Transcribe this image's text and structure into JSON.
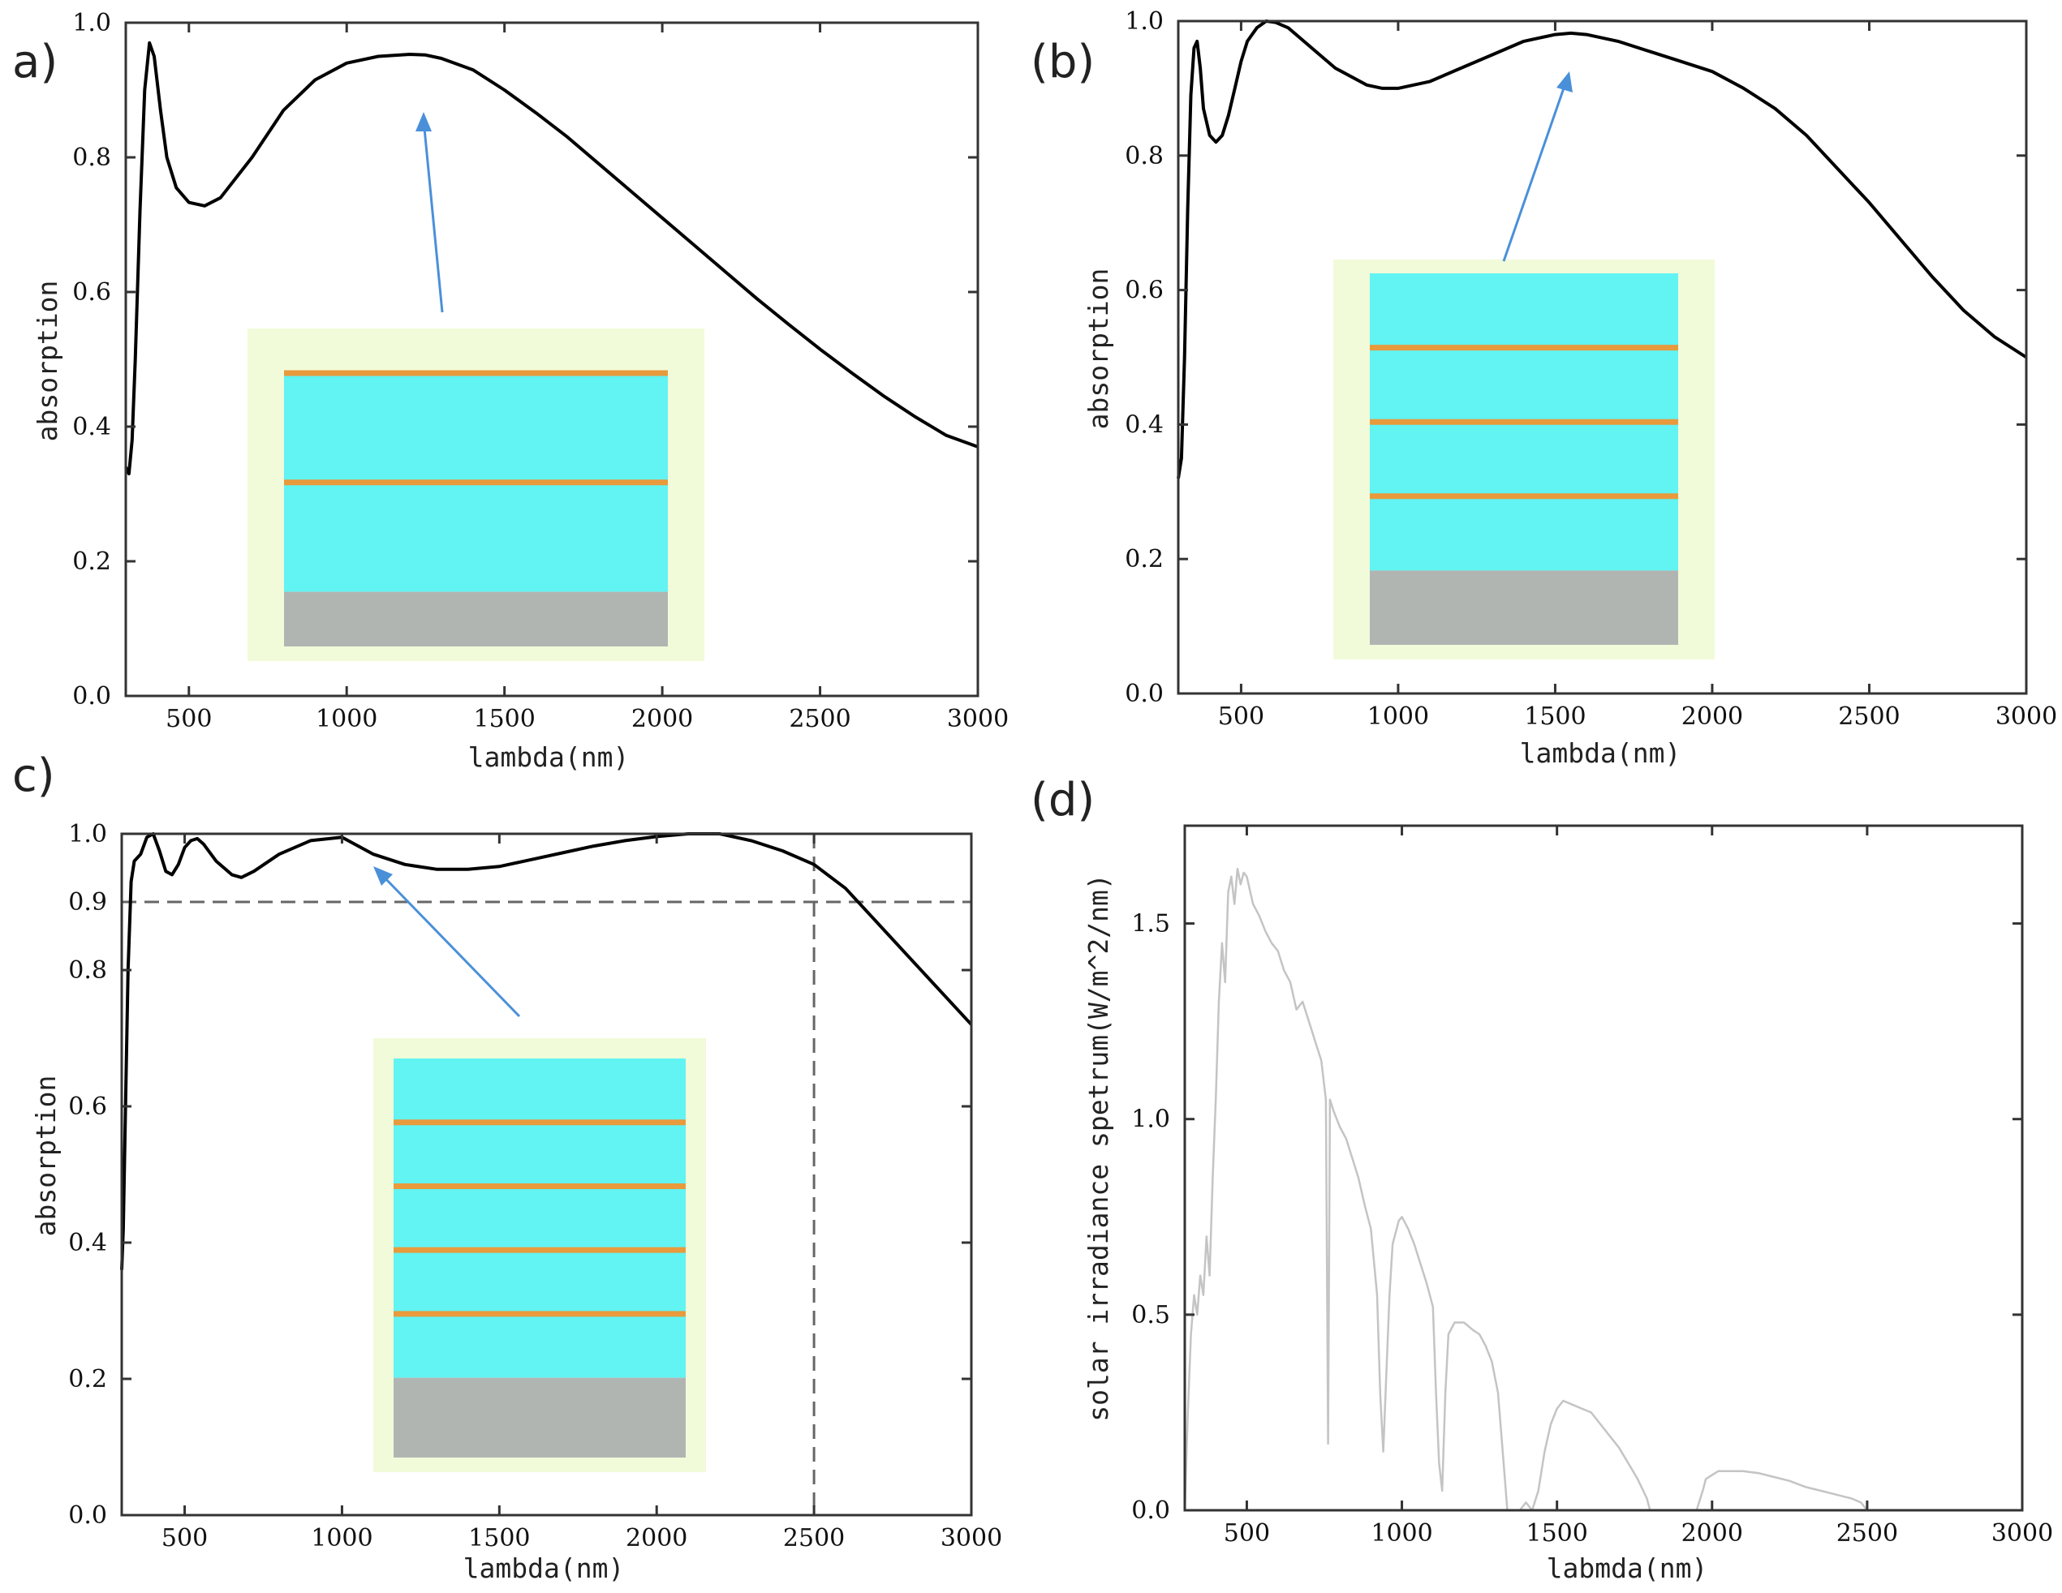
{
  "chart_data": [
    {
      "panel": "a)",
      "type": "line",
      "xlabel": "lambda(nm)",
      "ylabel": "absorption",
      "xlim": [
        300,
        3000
      ],
      "ylim": [
        0.0,
        1.0
      ],
      "xticks": [
        "500",
        "1000",
        "1500",
        "2000",
        "2500",
        "3000"
      ],
      "yticks": [
        "0.0",
        "0.2",
        "0.4",
        "0.6",
        "0.8",
        "1.0"
      ],
      "series": [
        {
          "name": "absorption",
          "color": "#000000",
          "x": [
            300,
            310,
            320,
            330,
            345,
            360,
            375,
            390,
            410,
            430,
            460,
            500,
            550,
            600,
            700,
            800,
            900,
            1000,
            1100,
            1200,
            1250,
            1300,
            1400,
            1500,
            1600,
            1700,
            1800,
            1900,
            2000,
            2100,
            2200,
            2300,
            2400,
            2500,
            2600,
            2700,
            2800,
            2900,
            3000
          ],
          "y": [
            0.34,
            0.33,
            0.38,
            0.5,
            0.72,
            0.9,
            0.97,
            0.95,
            0.87,
            0.8,
            0.755,
            0.733,
            0.728,
            0.74,
            0.8,
            0.87,
            0.915,
            0.94,
            0.95,
            0.953,
            0.952,
            0.947,
            0.93,
            0.9,
            0.866,
            0.83,
            0.79,
            0.75,
            0.71,
            0.67,
            0.63,
            0.59,
            0.552,
            0.515,
            0.48,
            0.446,
            0.415,
            0.387,
            0.37
          ]
        }
      ],
      "inset": {
        "stripes": 2,
        "bg": "#f1fbd9",
        "dielectric": "#62f3f3",
        "metal": "#e89a3c",
        "substrate": "#b1b5b2"
      }
    },
    {
      "panel": "(b)",
      "type": "line",
      "xlabel": "lambda(nm)",
      "ylabel": "absorption",
      "xlim": [
        300,
        3000
      ],
      "ylim": [
        0.0,
        1.0
      ],
      "xticks": [
        "500",
        "1000",
        "1500",
        "2000",
        "2500",
        "3000"
      ],
      "yticks": [
        "0.0",
        "0.2",
        "0.4",
        "0.6",
        "0.8",
        "1.0"
      ],
      "series": [
        {
          "name": "absorption",
          "color": "#000000",
          "x": [
            300,
            310,
            320,
            330,
            340,
            350,
            360,
            370,
            380,
            400,
            420,
            440,
            460,
            480,
            500,
            520,
            550,
            580,
            610,
            650,
            700,
            800,
            900,
            950,
            1000,
            1100,
            1200,
            1300,
            1400,
            1500,
            1550,
            1600,
            1700,
            1800,
            1900,
            2000,
            2100,
            2200,
            2300,
            2400,
            2500,
            2600,
            2700,
            2800,
            2900,
            3000
          ],
          "y": [
            0.32,
            0.35,
            0.5,
            0.72,
            0.89,
            0.96,
            0.97,
            0.93,
            0.87,
            0.83,
            0.82,
            0.83,
            0.86,
            0.9,
            0.94,
            0.97,
            0.99,
            1.0,
            0.998,
            0.99,
            0.97,
            0.93,
            0.905,
            0.9,
            0.9,
            0.91,
            0.93,
            0.95,
            0.97,
            0.98,
            0.982,
            0.98,
            0.97,
            0.955,
            0.94,
            0.925,
            0.9,
            0.87,
            0.83,
            0.78,
            0.73,
            0.675,
            0.62,
            0.57,
            0.53,
            0.5
          ]
        }
      ],
      "inset": {
        "stripes": 3,
        "bg": "#f1fbd9",
        "dielectric": "#62f3f3",
        "metal": "#e89a3c",
        "substrate": "#b1b5b2"
      }
    },
    {
      "panel": "c)",
      "type": "line",
      "xlabel": "lambda(nm)",
      "ylabel": "absorption",
      "xlim": [
        300,
        3000
      ],
      "ylim": [
        0.0,
        1.0
      ],
      "xticks": [
        "500",
        "1000",
        "1500",
        "2000",
        "2500",
        "3000"
      ],
      "yticks": [
        "0.0",
        "0.2",
        "0.4",
        "0.6",
        "0.8",
        "1.0"
      ],
      "highlighted_ytick": "0.9",
      "reference_lines": {
        "y": 0.9,
        "x": 2500,
        "color": "#e03030"
      },
      "series": [
        {
          "name": "absorption",
          "color": "#000000",
          "x": [
            300,
            305,
            310,
            320,
            330,
            340,
            350,
            360,
            380,
            400,
            420,
            440,
            460,
            480,
            500,
            520,
            540,
            560,
            600,
            650,
            680,
            720,
            800,
            900,
            1000,
            1100,
            1200,
            1300,
            1400,
            1500,
            1600,
            1700,
            1800,
            1900,
            2000,
            2100,
            2200,
            2300,
            2400,
            2500,
            2600,
            2700,
            2800,
            2900,
            3000
          ],
          "y": [
            0.36,
            0.42,
            0.55,
            0.8,
            0.93,
            0.96,
            0.965,
            0.97,
            0.995,
            1.0,
            0.975,
            0.945,
            0.94,
            0.955,
            0.98,
            0.99,
            0.993,
            0.985,
            0.96,
            0.94,
            0.936,
            0.945,
            0.97,
            0.99,
            0.995,
            0.97,
            0.955,
            0.948,
            0.948,
            0.952,
            0.962,
            0.972,
            0.982,
            0.99,
            0.996,
            1.0,
            1.0,
            0.99,
            0.975,
            0.955,
            0.92,
            0.87,
            0.82,
            0.77,
            0.72
          ]
        }
      ],
      "inset": {
        "stripes": 4,
        "bg": "#f1fbd9",
        "dielectric": "#62f3f3",
        "metal": "#e89a3c",
        "substrate": "#b1b5b2"
      }
    },
    {
      "panel": "(d)",
      "type": "line",
      "xlabel": "labmda(nm)",
      "ylabel": "solar irradiance spetrum(W/m^2/nm)",
      "xlim": [
        300,
        3000
      ],
      "ylim": [
        0.0,
        1.75
      ],
      "xticks": [
        "500",
        "1000",
        "1500",
        "2000",
        "2500",
        "3000"
      ],
      "yticks": [
        "0.0",
        "0.5",
        "1.0",
        "1.5"
      ],
      "series": [
        {
          "name": "solar irradiance",
          "color": "#c4c4c4",
          "x": [
            300,
            310,
            320,
            330,
            340,
            350,
            360,
            370,
            380,
            390,
            400,
            410,
            420,
            430,
            440,
            450,
            460,
            470,
            480,
            490,
            500,
            520,
            540,
            560,
            580,
            600,
            620,
            640,
            660,
            680,
            700,
            720,
            740,
            755,
            762,
            768,
            780,
            800,
            820,
            840,
            860,
            880,
            900,
            920,
            930,
            940,
            950,
            960,
            970,
            990,
            1000,
            1020,
            1040,
            1060,
            1080,
            1100,
            1110,
            1120,
            1130,
            1140,
            1150,
            1170,
            1200,
            1230,
            1250,
            1270,
            1290,
            1310,
            1330,
            1340,
            1350,
            1360,
            1380,
            1400,
            1420,
            1440,
            1460,
            1480,
            1500,
            1520,
            1550,
            1580,
            1610,
            1640,
            1670,
            1700,
            1730,
            1760,
            1790,
            1800,
            1810,
            1850,
            1900,
            1950,
            1970,
            1980,
            2000,
            2020,
            2050,
            2080,
            2100,
            2150,
            2200,
            2250,
            2300,
            2350,
            2400,
            2450,
            2480,
            2490,
            2500,
            2600,
            2700,
            2800,
            2900,
            3000
          ],
          "y": [
            0.0,
            0.25,
            0.45,
            0.55,
            0.5,
            0.6,
            0.55,
            0.7,
            0.6,
            0.85,
            1.05,
            1.3,
            1.45,
            1.35,
            1.58,
            1.62,
            1.55,
            1.64,
            1.6,
            1.63,
            1.62,
            1.55,
            1.52,
            1.48,
            1.45,
            1.43,
            1.38,
            1.35,
            1.28,
            1.3,
            1.25,
            1.2,
            1.15,
            1.05,
            0.17,
            1.05,
            1.02,
            0.98,
            0.95,
            0.9,
            0.85,
            0.78,
            0.72,
            0.55,
            0.3,
            0.15,
            0.35,
            0.55,
            0.68,
            0.74,
            0.75,
            0.72,
            0.68,
            0.63,
            0.58,
            0.52,
            0.3,
            0.12,
            0.05,
            0.3,
            0.45,
            0.48,
            0.48,
            0.46,
            0.45,
            0.42,
            0.38,
            0.3,
            0.1,
            0.0,
            0.0,
            0.0,
            0.0,
            0.02,
            0.0,
            0.05,
            0.15,
            0.22,
            0.26,
            0.28,
            0.27,
            0.26,
            0.25,
            0.22,
            0.19,
            0.16,
            0.12,
            0.08,
            0.03,
            0.0,
            0.0,
            0.0,
            0.0,
            0.0,
            0.05,
            0.08,
            0.09,
            0.1,
            0.1,
            0.1,
            0.1,
            0.095,
            0.085,
            0.075,
            0.06,
            0.05,
            0.04,
            0.03,
            0.02,
            0.01,
            0.0,
            0.0,
            0.0,
            0.0,
            0.0,
            0.0
          ]
        }
      ]
    }
  ]
}
